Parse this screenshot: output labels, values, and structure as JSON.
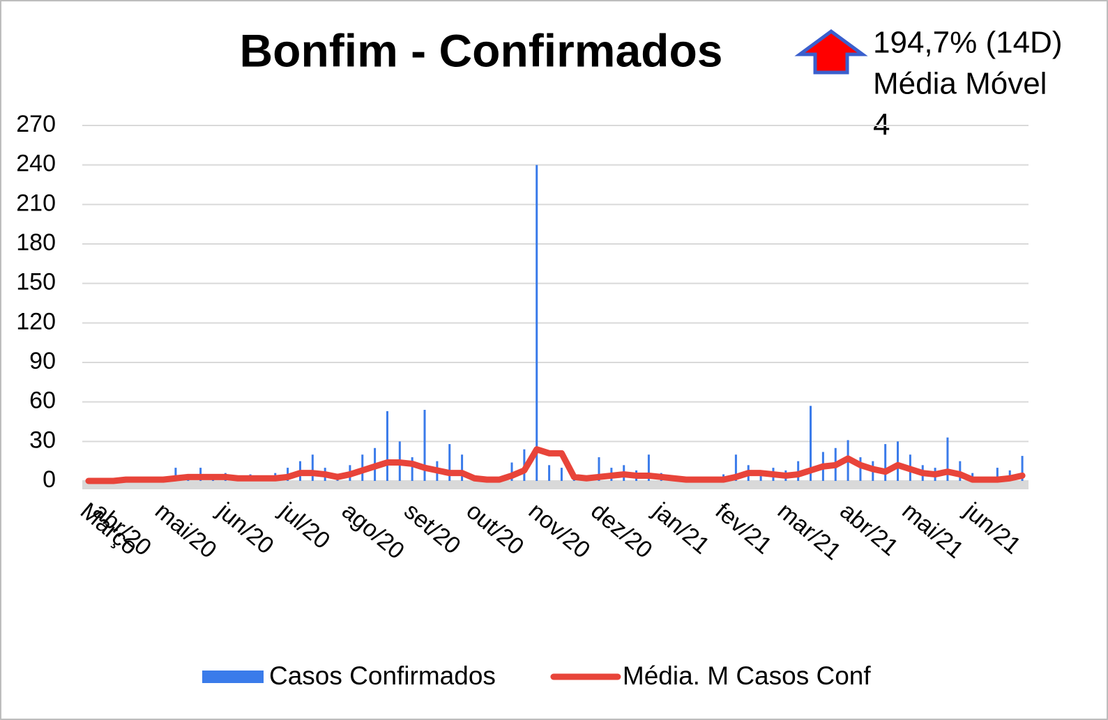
{
  "chart_data": {
    "type": "bar-line",
    "title": "Bonfim - Confirmados",
    "annotation": {
      "lines": [
        "194,7% (14D)",
        "Média Móvel",
        "4"
      ],
      "arrow": "up",
      "arrow_color": "#ff0000",
      "arrow_border": "#3a5fcd"
    },
    "categories": [
      "Março",
      "abr/20",
      null,
      null,
      null,
      null,
      "mai/20",
      null,
      null,
      null,
      null,
      "jun/20",
      null,
      null,
      null,
      null,
      "jul/20",
      null,
      null,
      null,
      null,
      "ago/20",
      null,
      null,
      null,
      null,
      "set/20",
      null,
      null,
      null,
      null,
      "out/20",
      null,
      null,
      null,
      null,
      "nov/20",
      null,
      null,
      null,
      null,
      "dez/20",
      null,
      null,
      null,
      null,
      "jan/21",
      null,
      null,
      null,
      null,
      "fev/21",
      null,
      null,
      null,
      null,
      "mar/21",
      null,
      null,
      null,
      null,
      "abr/21",
      null,
      null,
      null,
      null,
      "mai/21",
      null,
      null,
      null,
      null,
      "jun/21",
      null,
      null,
      null,
      null
    ],
    "series": [
      {
        "name": "Casos Confirmados",
        "kind": "bar",
        "color": "#3a7bea",
        "values": [
          0,
          1,
          1,
          2,
          2,
          3,
          3,
          10,
          5,
          10,
          4,
          6,
          4,
          5,
          4,
          6,
          10,
          15,
          20,
          10,
          5,
          12,
          20,
          25,
          53,
          30,
          18,
          54,
          15,
          28,
          20,
          2,
          2,
          2,
          14,
          24,
          240,
          12,
          10,
          5,
          3,
          18,
          10,
          12,
          8,
          20,
          6,
          4,
          3,
          3,
          2,
          5,
          20,
          12,
          8,
          10,
          8,
          15,
          57,
          22,
          25,
          31,
          18,
          15,
          28,
          30,
          20,
          12,
          10,
          33,
          15,
          6,
          3,
          10,
          8,
          19
        ]
      },
      {
        "name": "Média. M Casos Conf",
        "kind": "line",
        "color": "#e8443a",
        "values": [
          0,
          0,
          0,
          1,
          1,
          1,
          1,
          2,
          3,
          3,
          3,
          3,
          2,
          2,
          2,
          2,
          3,
          6,
          6,
          5,
          3,
          5,
          8,
          11,
          14,
          14,
          13,
          10,
          8,
          6,
          6,
          2,
          1,
          1,
          4,
          8,
          24,
          21,
          21,
          3,
          2,
          3,
          4,
          5,
          4,
          4,
          3,
          2,
          1,
          1,
          1,
          1,
          3,
          6,
          6,
          5,
          4,
          5,
          8,
          11,
          12,
          17,
          12,
          9,
          7,
          12,
          9,
          6,
          5,
          7,
          5,
          1,
          1,
          1,
          2,
          4
        ]
      }
    ],
    "ylim": [
      0,
      270
    ],
    "yticks": [
      0,
      30,
      60,
      90,
      120,
      150,
      180,
      210,
      240,
      270
    ],
    "grid": true,
    "legend": "bottom"
  }
}
